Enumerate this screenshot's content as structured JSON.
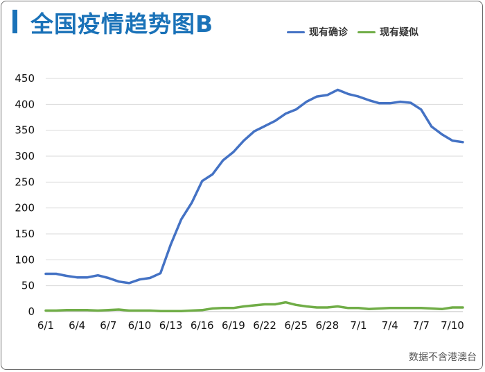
{
  "title": "全国疫情趋势图B",
  "footnote": "数据不含港澳台",
  "colors": {
    "title": "#1a72b8",
    "confirmed": "#4472c4",
    "suspected": "#70ad47",
    "grid": "#d9d9d9"
  },
  "chart_data": {
    "type": "line",
    "title": "全国疫情趋势图B",
    "xlabel": "",
    "ylabel": "",
    "ylim": [
      0,
      450
    ],
    "yticks": [
      "0",
      "50",
      "100",
      "150",
      "200",
      "250",
      "300",
      "350",
      "400",
      "450"
    ],
    "xtick_labels": [
      "6/1",
      "6/4",
      "6/7",
      "6/10",
      "6/13",
      "6/16",
      "6/19",
      "6/22",
      "6/25",
      "6/28",
      "7/1",
      "7/4",
      "7/7",
      "7/10"
    ],
    "x": [
      "6/1",
      "6/2",
      "6/3",
      "6/4",
      "6/5",
      "6/6",
      "6/7",
      "6/8",
      "6/9",
      "6/10",
      "6/11",
      "6/12",
      "6/13",
      "6/14",
      "6/15",
      "6/16",
      "6/17",
      "6/18",
      "6/19",
      "6/20",
      "6/21",
      "6/22",
      "6/23",
      "6/24",
      "6/25",
      "6/26",
      "6/27",
      "6/28",
      "6/29",
      "6/30",
      "7/1",
      "7/2",
      "7/3",
      "7/4",
      "7/5",
      "7/6",
      "7/7",
      "7/8",
      "7/9",
      "7/10",
      "7/11"
    ],
    "grid": true,
    "legend": "top-right",
    "series": [
      {
        "name": "现有确诊",
        "values": [
          73,
          73,
          69,
          66,
          66,
          70,
          65,
          58,
          55,
          62,
          65,
          74,
          130,
          178,
          210,
          252,
          265,
          292,
          308,
          330,
          348,
          358,
          368,
          382,
          390,
          405,
          415,
          418,
          428,
          420,
          415,
          408,
          402,
          402,
          405,
          403,
          390,
          357,
          342,
          330,
          327
        ]
      },
      {
        "name": "现有疑似",
        "values": [
          2,
          2,
          3,
          3,
          3,
          2,
          3,
          4,
          2,
          2,
          2,
          1,
          1,
          1,
          2,
          3,
          6,
          7,
          7,
          10,
          12,
          14,
          14,
          18,
          13,
          10,
          8,
          8,
          10,
          7,
          7,
          5,
          6,
          7,
          7,
          7,
          7,
          6,
          5,
          8,
          8
        ]
      }
    ]
  }
}
